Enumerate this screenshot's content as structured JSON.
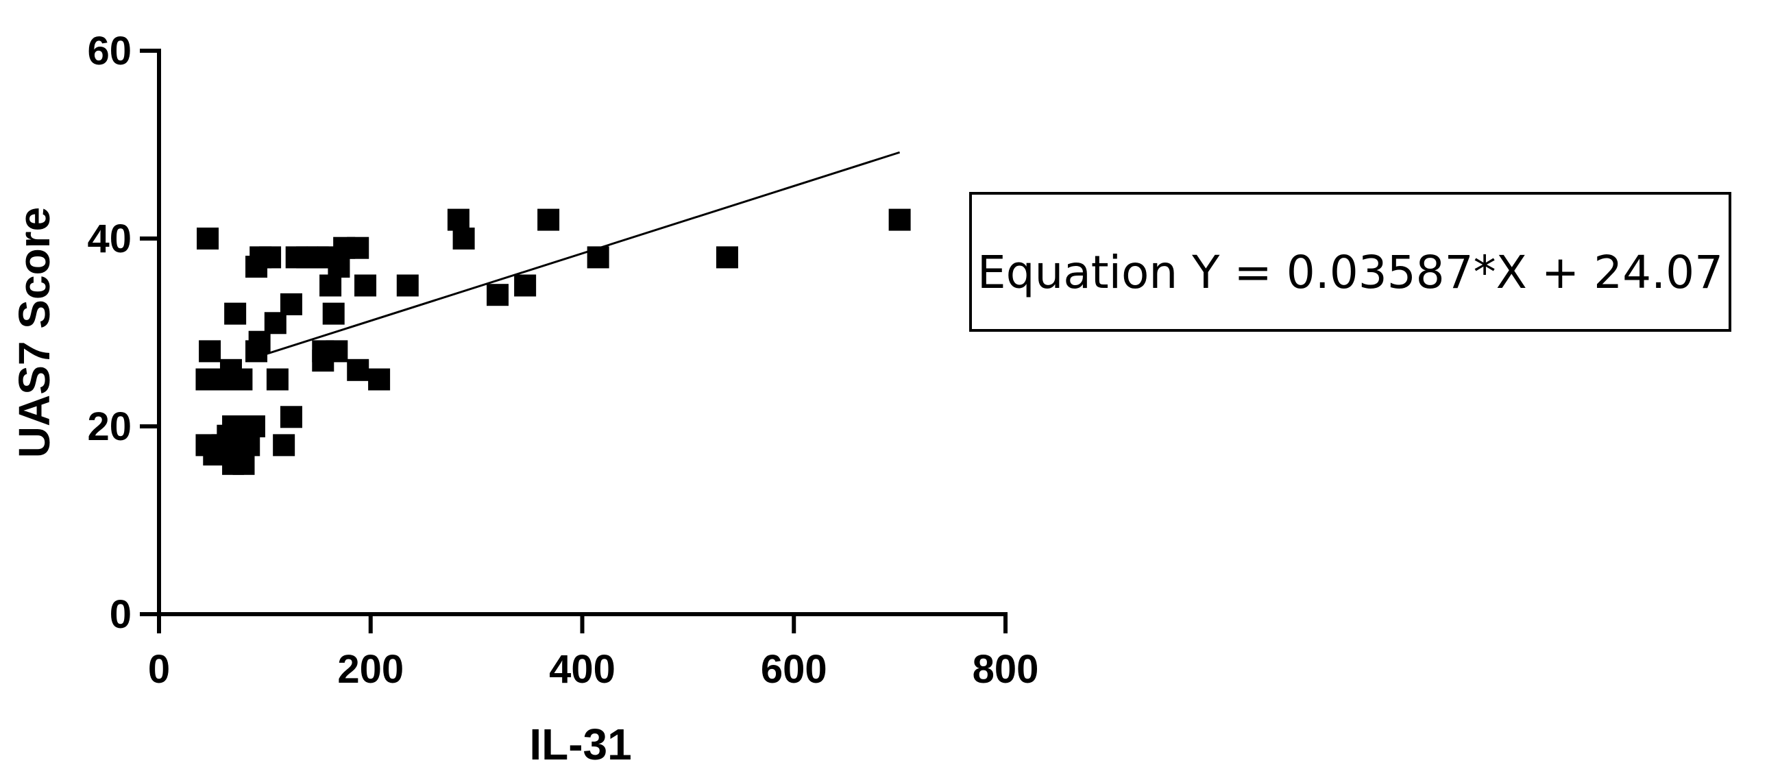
{
  "chart_data": {
    "type": "scatter",
    "title": "",
    "xlabel": "IL-31",
    "ylabel": "UAS7 Score",
    "xlim": [
      0,
      800
    ],
    "ylim": [
      0,
      60
    ],
    "x_ticks": [
      0,
      200,
      400,
      600,
      800
    ],
    "y_ticks": [
      0,
      20,
      40,
      60
    ],
    "grid": false,
    "marker": "square",
    "marker_color": "#000000",
    "points": [
      {
        "x": 46,
        "y": 40
      },
      {
        "x": 48,
        "y": 28
      },
      {
        "x": 45,
        "y": 25
      },
      {
        "x": 58,
        "y": 25
      },
      {
        "x": 45,
        "y": 18
      },
      {
        "x": 52,
        "y": 17
      },
      {
        "x": 60,
        "y": 18
      },
      {
        "x": 65,
        "y": 19
      },
      {
        "x": 70,
        "y": 20
      },
      {
        "x": 68,
        "y": 26
      },
      {
        "x": 72,
        "y": 32
      },
      {
        "x": 78,
        "y": 25
      },
      {
        "x": 75,
        "y": 17
      },
      {
        "x": 70,
        "y": 16
      },
      {
        "x": 80,
        "y": 16
      },
      {
        "x": 85,
        "y": 18
      },
      {
        "x": 90,
        "y": 20
      },
      {
        "x": 92,
        "y": 28
      },
      {
        "x": 95,
        "y": 29
      },
      {
        "x": 92,
        "y": 37
      },
      {
        "x": 96,
        "y": 38
      },
      {
        "x": 105,
        "y": 38
      },
      {
        "x": 110,
        "y": 31
      },
      {
        "x": 112,
        "y": 25
      },
      {
        "x": 118,
        "y": 18
      },
      {
        "x": 125,
        "y": 21
      },
      {
        "x": 125,
        "y": 33
      },
      {
        "x": 130,
        "y": 38
      },
      {
        "x": 140,
        "y": 38
      },
      {
        "x": 150,
        "y": 38
      },
      {
        "x": 155,
        "y": 28
      },
      {
        "x": 155,
        "y": 27
      },
      {
        "x": 160,
        "y": 38
      },
      {
        "x": 162,
        "y": 35
      },
      {
        "x": 165,
        "y": 32
      },
      {
        "x": 168,
        "y": 28
      },
      {
        "x": 170,
        "y": 37
      },
      {
        "x": 175,
        "y": 39
      },
      {
        "x": 188,
        "y": 39
      },
      {
        "x": 188,
        "y": 26
      },
      {
        "x": 195,
        "y": 35
      },
      {
        "x": 208,
        "y": 25
      },
      {
        "x": 235,
        "y": 35
      },
      {
        "x": 283,
        "y": 42
      },
      {
        "x": 288,
        "y": 40
      },
      {
        "x": 320,
        "y": 34
      },
      {
        "x": 346,
        "y": 35
      },
      {
        "x": 368,
        "y": 42
      },
      {
        "x": 415,
        "y": 38
      },
      {
        "x": 537,
        "y": 38
      },
      {
        "x": 700,
        "y": 42
      }
    ],
    "regression": {
      "slope": 0.03587,
      "intercept": 24.07,
      "x_start": 95,
      "x_end": 700
    },
    "annotation": {
      "text": "Equation Y = 0.03587*X + 24.07",
      "placement": "right-middle",
      "boxed": true
    }
  }
}
